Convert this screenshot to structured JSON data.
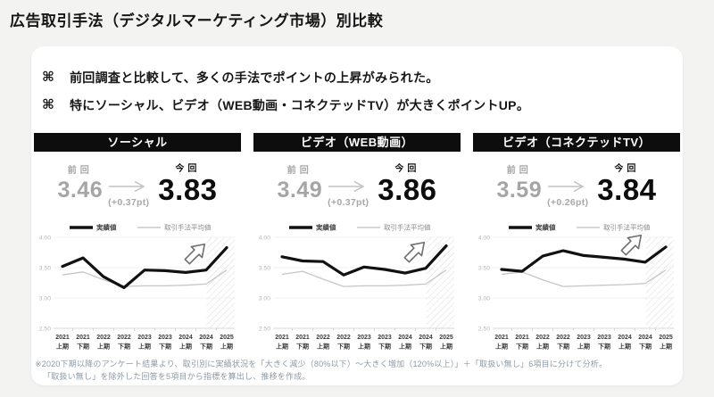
{
  "page": {
    "title": "広告取引手法（デジタルマーケティング市場）別比較"
  },
  "bullets": [
    {
      "icon": "⌘",
      "text": "前回調査と比較して、多くの手法でポイントの上昇がみられた。"
    },
    {
      "icon": "⌘",
      "text": "特にソーシャル、ビデオ（WEB動画・コネクテッドTV）が大きくポイントUP。"
    }
  ],
  "labels": {
    "previous": "前回",
    "current": "今回"
  },
  "panels": [
    {
      "header": "ソーシャル",
      "previous_value": "3.46",
      "current_value": "3.83",
      "delta": "(+0.37pt)"
    },
    {
      "header": "ビデオ（WEB動画）",
      "previous_value": "3.49",
      "current_value": "3.86",
      "delta": "(+0.37pt)"
    },
    {
      "header": "ビデオ（コネクテッドTV）",
      "previous_value": "3.59",
      "current_value": "3.84",
      "delta": "(+0.26pt)"
    }
  ],
  "colors": {
    "header_bg": "#0d0d0d",
    "previous_text": "#a5a5a5",
    "current_text": "#0d0d0d",
    "actual_line": "#111111",
    "average_line": "#c6c6c6",
    "hatch": "#d9d9d9",
    "axis_text": "#b6b6b6",
    "xaxis_text": "#3a3a3a"
  },
  "chart_data": [
    {
      "type": "line",
      "title": "ソーシャル",
      "categories": [
        "2021上期",
        "2021下期",
        "2022上期",
        "2022下期",
        "2023上期",
        "2023下期",
        "2024上期",
        "2024下期",
        "2025上期"
      ],
      "series": [
        {
          "name": "実績値",
          "values": [
            3.52,
            3.66,
            3.35,
            3.17,
            3.46,
            3.45,
            3.42,
            3.46,
            3.83
          ]
        },
        {
          "name": "取引手法平均値",
          "values": [
            3.38,
            3.43,
            3.3,
            3.19,
            3.2,
            3.2,
            3.21,
            3.23,
            3.46
          ]
        }
      ],
      "ylim": [
        2.5,
        4.0
      ],
      "yticks": [
        "4.00",
        "3.50",
        "3.00",
        "2.50"
      ],
      "legend_position": "top",
      "highlight_last_period": true
    },
    {
      "type": "line",
      "title": "ビデオ（WEB動画）",
      "categories": [
        "2021上期",
        "2021下期",
        "2022上期",
        "2022下期",
        "2023上期",
        "2023下期",
        "2024上期",
        "2024下期",
        "2025上期"
      ],
      "series": [
        {
          "name": "実績値",
          "values": [
            3.68,
            3.61,
            3.6,
            3.38,
            3.51,
            3.47,
            3.41,
            3.49,
            3.86
          ]
        },
        {
          "name": "取引手法平均値",
          "values": [
            3.39,
            3.44,
            3.31,
            3.19,
            3.2,
            3.2,
            3.21,
            3.23,
            3.46
          ]
        }
      ],
      "ylim": [
        2.5,
        4.0
      ],
      "yticks": [
        "4.00",
        "3.50",
        "3.00",
        "2.50"
      ],
      "legend_position": "top",
      "highlight_last_period": true
    },
    {
      "type": "line",
      "title": "ビデオ（コネクテッドTV）",
      "categories": [
        "2021上期",
        "2021下期",
        "2022上期",
        "2022下期",
        "2023上期",
        "2023下期",
        "2024上期",
        "2024下期",
        "2025上期"
      ],
      "series": [
        {
          "name": "実績値",
          "values": [
            3.47,
            3.44,
            3.69,
            3.78,
            3.7,
            3.67,
            3.64,
            3.59,
            3.84
          ]
        },
        {
          "name": "取引手法平均値",
          "values": [
            3.39,
            3.43,
            3.3,
            3.19,
            3.2,
            3.21,
            3.22,
            3.24,
            3.46
          ]
        }
      ],
      "ylim": [
        2.5,
        4.0
      ],
      "yticks": [
        "4.00",
        "3.50",
        "3.00",
        "2.50"
      ],
      "legend_position": "top",
      "highlight_last_period": true
    }
  ],
  "footnote": {
    "line1": "※2020下期以降のアンケート結果より、取引別に実績状況を「大きく減少（80%以下）〜大きく増加（120%以上）」＋「取扱い無し」6項目に分けて分析。",
    "line2": "「取扱い無し」を除外した回答を5項目から指標を算出し、推移を作成。"
  }
}
